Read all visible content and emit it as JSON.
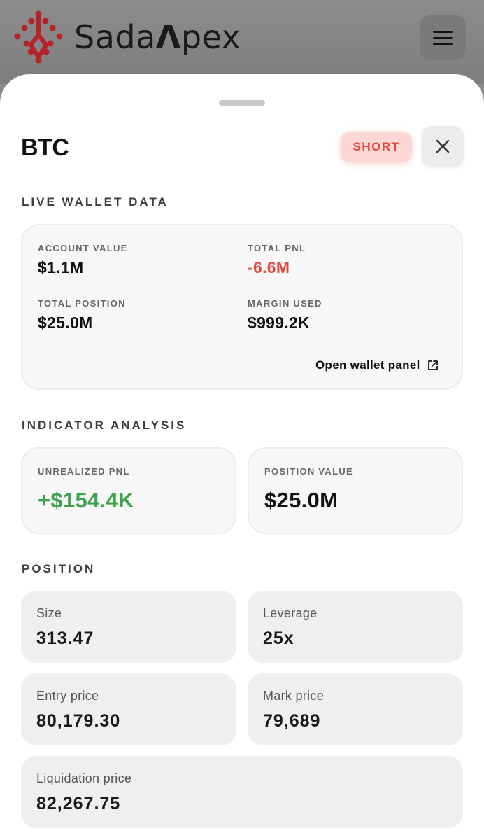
{
  "brand": {
    "name_pre": "Sada",
    "name_post": "pex"
  },
  "sheet": {
    "title": "BTC",
    "side": "SHORT"
  },
  "wallet": {
    "heading": "LIVE WALLET DATA",
    "account_value_label": "ACCOUNT VALUE",
    "account_value": "$1.1M",
    "total_pnl_label": "TOTAL PNL",
    "total_pnl": "-6.6M",
    "total_position_label": "TOTAL POSITION",
    "total_position": "$25.0M",
    "margin_used_label": "MARGIN USED",
    "margin_used": "$999.2K",
    "link_label": "Open wallet panel"
  },
  "indicator": {
    "heading": "INDICATOR ANALYSIS",
    "unrealized_label": "UNREALIZED PNL",
    "unrealized_value": "+$154.4K",
    "position_value_label": "POSITION VALUE",
    "position_value": "$25.0M"
  },
  "position": {
    "heading": "POSITION",
    "tiles": [
      {
        "label": "Size",
        "value": "313.47"
      },
      {
        "label": "Leverage",
        "value": "25x"
      },
      {
        "label": "Entry price",
        "value": "80,179.30"
      },
      {
        "label": "Mark price",
        "value": "79,689"
      },
      {
        "label": "Liquidation price",
        "value": "82,267.75"
      }
    ]
  },
  "colors": {
    "negative": "#e64a3f",
    "positive": "#3fa34d",
    "brand_red": "#b4232a",
    "short_badge_bg": "#fbd7d5"
  },
  "icons": {
    "menu": "hamburger-icon",
    "close": "close-icon",
    "external": "external-link-icon",
    "logo": "brand-logo-icon"
  }
}
